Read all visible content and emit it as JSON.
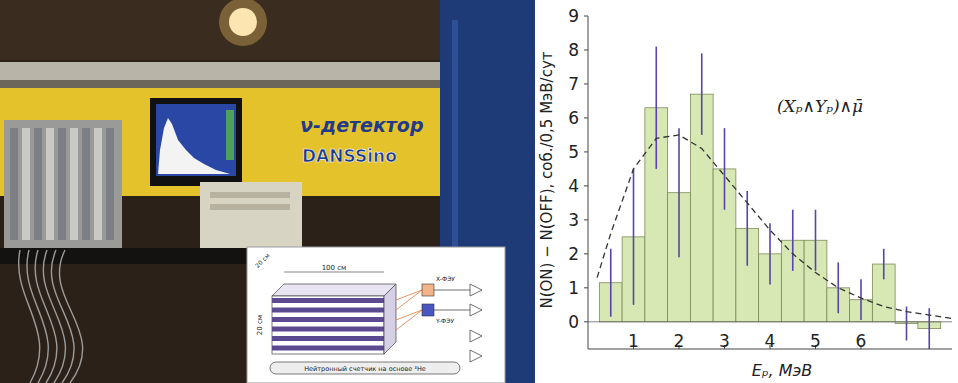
{
  "chart_data": {
    "type": "histogram",
    "annotation": "(Xₚ∧Yₚ)∧μ̄",
    "x_label": "Eₚ, МэВ",
    "y_label": "N(ON) − N(OFF), соб./0,5 МэВ/сут",
    "bins": [
      0.25,
      0.75,
      1.25,
      1.75,
      2.25,
      2.75,
      3.25,
      3.75,
      4.25,
      4.75,
      5.25,
      5.75,
      6.25,
      6.75,
      7.25,
      7.75
    ],
    "values": [
      1.15,
      2.5,
      6.3,
      3.8,
      6.7,
      4.5,
      2.75,
      2.0,
      2.4,
      2.4,
      1.0,
      0.65,
      1.7,
      -0.05,
      -0.2
    ],
    "errors": [
      1.0,
      2.0,
      1.8,
      1.9,
      1.2,
      1.2,
      1.1,
      0.9,
      0.9,
      0.9,
      0.75,
      0.6,
      0.45,
      0.5,
      0.6
    ],
    "color": "#d8e8b4",
    "xlim": [
      0,
      8
    ],
    "xticks": [
      1,
      2,
      3,
      4,
      5,
      6
    ],
    "ylim": [
      -0.8,
      9
    ],
    "yticks": [
      0,
      1,
      2,
      3,
      4,
      5,
      6,
      7,
      8,
      9
    ],
    "grid": false,
    "series": [
      {
        "type": "line",
        "line_style": "dashed",
        "color": "#333333",
        "x": [
          0.2,
          0.5,
          1,
          1.5,
          2,
          2.5,
          3,
          3.5,
          4,
          4.5,
          5,
          5.5,
          6,
          6.5,
          7,
          7.5,
          8
        ],
        "values": [
          1.3,
          2.6,
          4.5,
          5.4,
          5.5,
          5.1,
          4.3,
          3.5,
          2.7,
          2.0,
          1.45,
          1.0,
          0.7,
          0.45,
          0.3,
          0.2,
          0.1
        ]
      }
    ]
  },
  "photo": {
    "banner": [
      "ν-детектор",
      "DANSSino"
    ],
    "inset_labels": [
      "100 см",
      "20 см",
      "20 см",
      "X-ФЭУ",
      "Y-ФЭУ",
      "Нейтронный счетчик на основе ³He"
    ]
  }
}
